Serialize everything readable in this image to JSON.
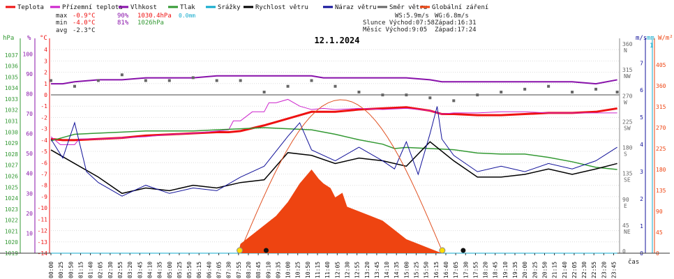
{
  "title": "12.1.2024",
  "legend": [
    {
      "label": "Teplota",
      "color": "#ee1111"
    },
    {
      "label": "Přízemní teplota",
      "color": "#cc22cc"
    },
    {
      "label": "Vlhkost",
      "color": "#8811aa"
    },
    {
      "label": "Tlak",
      "color": "#339933"
    },
    {
      "label": "Srážky",
      "color": "#11aacc"
    },
    {
      "label": "Rychlost větru",
      "color": "#000000"
    },
    {
      "label": "Náraz větru",
      "color": "#111199"
    },
    {
      "label": "Směr větru",
      "color": "#666666"
    },
    {
      "label": "Globální záření",
      "color": "#ee4411"
    }
  ],
  "stats": {
    "max_label": "max",
    "max_temp": "-0.9°C",
    "max_hum": "90%",
    "max_press": "1030.4hPa",
    "precip": "0.0mm",
    "min_label": "min",
    "min_temp": "-4.0°C",
    "min_hum": "81%",
    "min_press": "1026hPa",
    "avg_label": "avg",
    "avg_temp": "-2.3°C"
  },
  "wind_info": {
    "ws": "WS:5.9m/s",
    "wg": "WG:6.8m/s"
  },
  "sun": {
    "slunce": "Slunce Východ:07:58",
    "slunce_zapad": "Západ:16:31"
  },
  "moon": {
    "mesic": "Měsíc  Východ:9:05",
    "mesic_zapad": "Západ:17:24"
  },
  "axis_units": {
    "hpa": "hPa",
    "pct": "%",
    "degc": "°C",
    "ms": "m/s",
    "mm": "mm",
    "wm2": "W/m²",
    "time": "čas",
    "mm_top": "1"
  },
  "chart_data": {
    "type": "line",
    "title": "12.1.2024",
    "x_tick_labels": [
      "00:00",
      "00:25",
      "00:50",
      "01:15",
      "01:40",
      "02:05",
      "02:30",
      "02:55",
      "03:20",
      "03:45",
      "04:10",
      "04:35",
      "05:00",
      "05:25",
      "05:50",
      "06:15",
      "06:40",
      "07:05",
      "07:30",
      "07:55",
      "08:20",
      "08:45",
      "09:10",
      "09:35",
      "10:00",
      "10:25",
      "10:50",
      "11:15",
      "11:40",
      "12:05",
      "12:30",
      "12:55",
      "13:20",
      "13:45",
      "14:10",
      "14:35",
      "15:00",
      "15:25",
      "15:50",
      "16:15",
      "16:40",
      "17:05",
      "17:30",
      "17:55",
      "18:20",
      "18:45",
      "19:10",
      "19:35",
      "20:00",
      "20:25",
      "20:50",
      "21:15",
      "21:40",
      "22:05",
      "22:30",
      "22:55",
      "23:20",
      "23:45"
    ],
    "axes": {
      "pressure_hpa": {
        "ticks": [
          1019,
          1020,
          1021,
          1022,
          1023,
          1024,
          1025,
          1026,
          1027,
          1028,
          1029,
          1030,
          1031,
          1032,
          1033,
          1034,
          1035,
          1036,
          1037
        ],
        "range": [
          1019,
          1038
        ]
      },
      "humidity_pct": {
        "ticks": [
          10,
          20,
          30,
          40,
          50,
          60,
          70,
          80,
          90,
          100
        ],
        "range": [
          0,
          105
        ]
      },
      "temperature_c": {
        "ticks": [
          4,
          3,
          2,
          1,
          0,
          -1,
          -2,
          -3,
          -4,
          -5,
          -6,
          -7,
          -8,
          -9,
          -10,
          -11,
          -12,
          -13,
          -14
        ],
        "range": [
          -14,
          4.5
        ]
      },
      "wind_dir": {
        "ticks": [
          {
            "v": 360,
            "l": "N"
          },
          {
            "v": 315,
            "l": "NW"
          },
          {
            "v": 270,
            "l": "W"
          },
          {
            "v": 225,
            "l": "SW"
          },
          {
            "v": 180,
            "l": "S"
          },
          {
            "v": 135,
            "l": "SE"
          },
          {
            "v": 90,
            "l": "E"
          },
          {
            "v": 45,
            "l": "NE"
          },
          {
            "v": 0,
            "l": ""
          }
        ]
      },
      "wind_speed_ms": {
        "ticks": [
          7,
          6,
          5,
          4,
          3,
          2,
          1,
          0
        ],
        "range": [
          0,
          7.7
        ]
      },
      "precip_mm": {
        "ticks": [
          1,
          0
        ],
        "range": [
          0,
          1
        ]
      },
      "radiation_wm2": {
        "ticks": [
          405,
          360,
          315,
          270,
          225,
          180,
          135,
          90,
          45,
          0
        ],
        "range": [
          0,
          450
        ]
      }
    },
    "series": [
      {
        "name": "Teplota",
        "unit": "°C",
        "x_hours": [
          0,
          0.5,
          1,
          2,
          3,
          4,
          5,
          6,
          7,
          7.5,
          8,
          9,
          9.5,
          10,
          10.5,
          11,
          12,
          13,
          14,
          15,
          16,
          16.5,
          17,
          18,
          19,
          20,
          21,
          22,
          23,
          23.9
        ],
        "values": [
          -3.9,
          -4,
          -4,
          -3.9,
          -3.8,
          -3.6,
          -3.5,
          -3.4,
          -3.3,
          -3.3,
          -3.2,
          -2.7,
          -2.4,
          -2.1,
          -1.8,
          -1.5,
          -1.5,
          -1.3,
          -1.2,
          -1.1,
          -1.4,
          -1.7,
          -1.7,
          -1.8,
          -1.8,
          -1.7,
          -1.6,
          -1.6,
          -1.5,
          -1.2
        ]
      },
      {
        "name": "Přízemní teplota",
        "unit": "°C",
        "x_hours": [
          0,
          0.4,
          0.5,
          1,
          1.2,
          2,
          3,
          4,
          5,
          6,
          7,
          7.5,
          7.7,
          8,
          8.5,
          9,
          9.2,
          9.5,
          10,
          10.5,
          11,
          11.5,
          12,
          13,
          14,
          15,
          16,
          16.5,
          17,
          18,
          19,
          20,
          21,
          22,
          23,
          23.9
        ],
        "values": [
          -3.7,
          -4.4,
          -4.4,
          -4.4,
          -3.9,
          -3.9,
          -3.8,
          -3.7,
          -3.5,
          -3.4,
          -3.2,
          -3.1,
          -2.3,
          -2.3,
          -1.5,
          -1.5,
          -0.7,
          -0.7,
          -0.4,
          -1.0,
          -1.3,
          -1.2,
          -1.3,
          -1.2,
          -1.3,
          -1.2,
          -1.4,
          -1.7,
          -1.6,
          -1.6,
          -1.5,
          -1.5,
          -1.6,
          -1.6,
          -1.6,
          -1.6
        ]
      },
      {
        "name": "Vlhkost",
        "unit": "%",
        "x_hours": [
          0,
          0.5,
          1,
          2,
          3,
          4,
          5,
          6,
          7,
          8,
          9,
          10,
          11,
          11.5,
          12,
          13,
          14,
          15,
          16,
          16.5,
          17,
          18,
          19,
          20,
          21,
          22,
          23,
          23.9
        ],
        "values": [
          85,
          85,
          86,
          87,
          87,
          88,
          88,
          88,
          89,
          89,
          89,
          89,
          89,
          88,
          88,
          88,
          88,
          88,
          87,
          86,
          86,
          86,
          86,
          86,
          86,
          86,
          85,
          87
        ]
      },
      {
        "name": "Tlak",
        "unit": "hPa",
        "x_hours": [
          0,
          0.5,
          1,
          2,
          3,
          4,
          5,
          6,
          7,
          8,
          9,
          10,
          11,
          12,
          13,
          14,
          14.5,
          15,
          16,
          17,
          18,
          19,
          20,
          21,
          22,
          23,
          23.9
        ],
        "values": [
          1029.2,
          1029.5,
          1029.8,
          1029.9,
          1030,
          1030.1,
          1030.1,
          1030.1,
          1030.2,
          1030.3,
          1030.4,
          1030.3,
          1030.2,
          1029.8,
          1029.3,
          1028.9,
          1028.5,
          1028.6,
          1028.5,
          1028.4,
          1028.1,
          1028,
          1028,
          1027.7,
          1027.3,
          1026.8,
          1026.6
        ]
      },
      {
        "name": "Srážky",
        "unit": "mm",
        "x_hours": [
          0,
          23.9
        ],
        "values": [
          0,
          0
        ]
      },
      {
        "name": "Rychlost větru",
        "unit": "m/s",
        "x_hours": [
          0,
          1,
          2,
          3,
          4,
          5,
          6,
          7,
          8,
          9,
          10,
          11,
          12,
          13,
          14,
          15,
          16,
          17,
          18,
          19,
          20,
          21,
          22,
          23,
          23.9
        ],
        "values": [
          3.8,
          3.3,
          2.8,
          2.2,
          2.4,
          2.3,
          2.5,
          2.4,
          2.6,
          2.7,
          3.7,
          3.6,
          3.3,
          3.5,
          3.4,
          3.2,
          4.1,
          3.4,
          2.8,
          2.8,
          2.9,
          3.1,
          2.9,
          3.1,
          3.3
        ]
      },
      {
        "name": "Náraz větru",
        "unit": "m/s",
        "x_hours": [
          0,
          0.5,
          1,
          1.5,
          2,
          3,
          4,
          5,
          6,
          7,
          8,
          9,
          10,
          10.5,
          11,
          12,
          13,
          14,
          14.5,
          15,
          15.5,
          16,
          16.3,
          16.5,
          17,
          18,
          19,
          20,
          21,
          22,
          23,
          23.9
        ],
        "values": [
          4.2,
          3.5,
          4.8,
          3,
          2.6,
          2.1,
          2.5,
          2.2,
          2.4,
          2.3,
          2.8,
          3.2,
          4.3,
          4.8,
          3.8,
          3.4,
          3.9,
          3.4,
          3.1,
          4.1,
          2.9,
          4.4,
          5.4,
          4.2,
          3.6,
          3.0,
          3.2,
          3.0,
          3.3,
          3.1,
          3.4,
          3.9
        ]
      },
      {
        "name": "Směr větru",
        "unit": "°",
        "x_hours": [
          0,
          1,
          2,
          3,
          4,
          5,
          6,
          7,
          8,
          9,
          10,
          11,
          12,
          13,
          14,
          15,
          16,
          17,
          18,
          19,
          20,
          21,
          22,
          23,
          23.9
        ],
        "values": [
          300,
          290,
          300,
          310,
          300,
          300,
          305,
          300,
          300,
          280,
          290,
          300,
          290,
          280,
          275,
          275,
          270,
          265,
          275,
          280,
          285,
          290,
          280,
          285,
          280
        ]
      },
      {
        "name": "Globální záření",
        "unit": "W/m²",
        "x_hours": [
          7.9,
          8,
          8.5,
          9,
          9.5,
          10,
          10.5,
          11,
          11.3,
          11.5,
          11.8,
          12,
          12.3,
          12.5,
          13,
          13.5,
          14,
          14.5,
          15,
          15.5,
          16,
          16.5
        ],
        "values": [
          0,
          20,
          40,
          60,
          80,
          110,
          150,
          180,
          160,
          150,
          140,
          120,
          130,
          100,
          90,
          80,
          70,
          50,
          30,
          20,
          10,
          0
        ]
      }
    ],
    "sun_markers": [
      {
        "time": "07:58",
        "symbol": "sunrise"
      },
      {
        "time": "16:31",
        "symbol": "sunset"
      }
    ],
    "moon_markers": [
      {
        "time": "09:05",
        "symbol": "moonrise"
      },
      {
        "time": "17:24",
        "symbol": "moonset"
      }
    ],
    "xlabel": "čas",
    "grid": true,
    "legend_position": "top"
  }
}
